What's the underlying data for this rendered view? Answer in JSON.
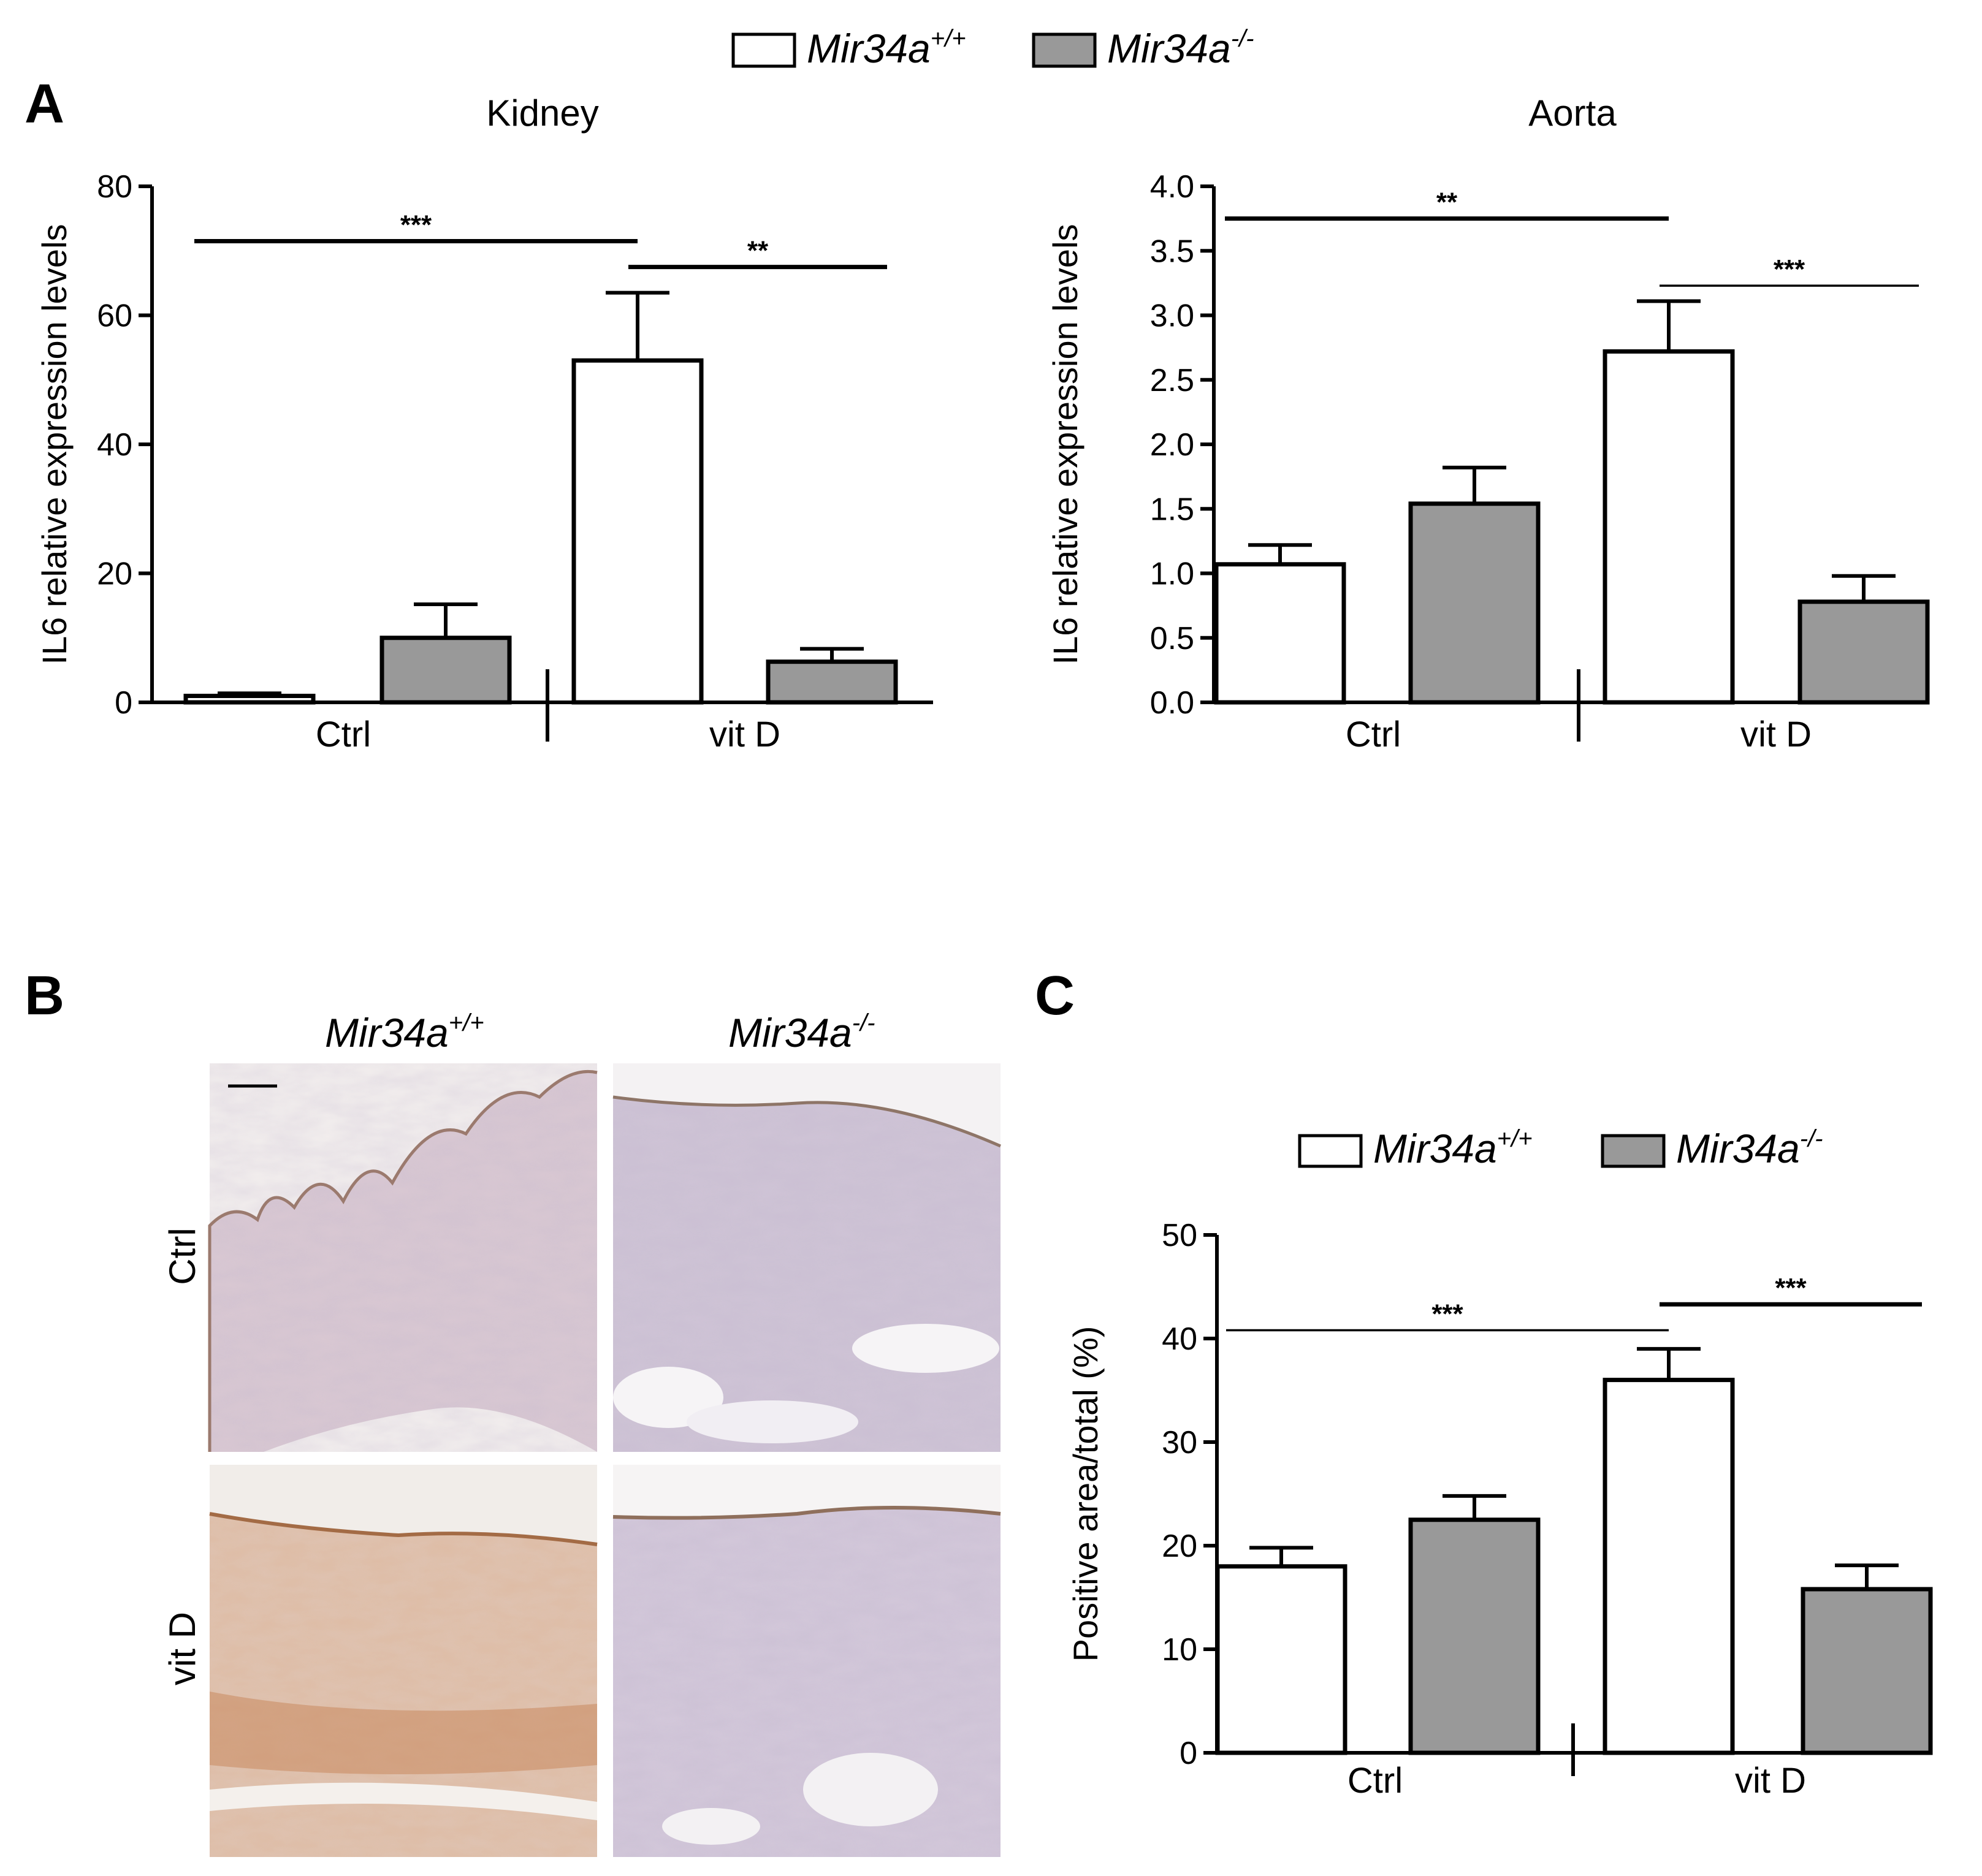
{
  "figure": {
    "panel_labels": {
      "a": "A",
      "b": "B",
      "c": "C"
    },
    "legend": {
      "wt": {
        "base": "Mir34a",
        "sup": "+/+"
      },
      "ko": {
        "base": "Mir34a",
        "sup": "-/-"
      }
    },
    "micrographs": {
      "col_headers": [
        {
          "base": "Mir34a",
          "sup": "+/+"
        },
        {
          "base": "Mir34a",
          "sup": "-/-"
        }
      ],
      "row_labels": [
        "Ctrl",
        "vit D"
      ]
    },
    "colors": {
      "wt": "#ffffff",
      "ko": "#999999",
      "outline": "#000000"
    }
  },
  "chart_data": [
    {
      "type": "bar",
      "title": "Kidney",
      "ylabel": "IL6 relative expression levels",
      "categories": [
        "Ctrl",
        "vit D"
      ],
      "ylim": [
        0,
        80
      ],
      "yticks": [
        0,
        20,
        40,
        60,
        80
      ],
      "ytick_labels": [
        "0",
        "20",
        "40",
        "60",
        "80"
      ],
      "series": [
        {
          "name": "Mir34a+/+",
          "values": [
            1,
            53
          ],
          "errors": [
            0.4,
            10.5
          ]
        },
        {
          "name": "Mir34a-/-",
          "values": [
            10,
            6.3
          ],
          "errors": [
            5.2,
            2
          ]
        }
      ],
      "significance": [
        {
          "label": "***",
          "from_group": 0,
          "from_series": 0,
          "to_group": 1,
          "to_series": 0,
          "y": 71.5,
          "weight": "thick"
        },
        {
          "label": "**",
          "from_group": 1,
          "from_series": 0,
          "to_group": 1,
          "to_series": 1,
          "y": 67.5,
          "weight": "thick"
        }
      ]
    },
    {
      "type": "bar",
      "title": "Aorta",
      "ylabel": "IL6 relative expression levels",
      "categories": [
        "Ctrl",
        "vit D"
      ],
      "ylim": [
        0,
        4.0
      ],
      "yticks": [
        0,
        0.5,
        1.0,
        1.5,
        2.0,
        2.5,
        3.0,
        3.5,
        4.0
      ],
      "ytick_labels": [
        "0.0",
        "0.5",
        "1.0",
        "1.5",
        "2.0",
        "2.5",
        "3.0",
        "3.5",
        "4.0"
      ],
      "series": [
        {
          "name": "Mir34a+/+",
          "values": [
            1.07,
            2.72
          ],
          "errors": [
            0.15,
            0.39
          ]
        },
        {
          "name": "Mir34a-/-",
          "values": [
            1.54,
            0.78
          ],
          "errors": [
            0.28,
            0.2
          ]
        }
      ],
      "significance": [
        {
          "label": "**",
          "from_group": 0,
          "from_series": 0,
          "to_group": 1,
          "to_series": 0,
          "y": 3.75,
          "weight": "thick"
        },
        {
          "label": "***",
          "from_group": 1,
          "from_series": 0,
          "to_group": 1,
          "to_series": 1,
          "y": 3.23,
          "weight": "thin"
        }
      ]
    },
    {
      "type": "bar",
      "title": "",
      "ylabel": "Positive area/total (%)",
      "categories": [
        "Ctrl",
        "vit D"
      ],
      "ylim": [
        0,
        50
      ],
      "yticks": [
        0,
        10,
        20,
        30,
        40,
        50
      ],
      "ytick_labels": [
        "0",
        "10",
        "20",
        "30",
        "40",
        "50"
      ],
      "series": [
        {
          "name": "Mir34a+/+",
          "values": [
            18,
            36
          ],
          "errors": [
            1.8,
            3
          ]
        },
        {
          "name": "Mir34a-/-",
          "values": [
            22.5,
            15.8
          ],
          "errors": [
            2.3,
            2.3
          ]
        }
      ],
      "significance": [
        {
          "label": "***",
          "from_group": 0,
          "from_series": 0,
          "to_group": 1,
          "to_series": 0,
          "y": 40.8,
          "weight": "thin"
        },
        {
          "label": "***",
          "from_group": 1,
          "from_series": 0,
          "to_group": 1,
          "to_series": 1,
          "y": 43.3,
          "weight": "thick"
        }
      ]
    }
  ]
}
